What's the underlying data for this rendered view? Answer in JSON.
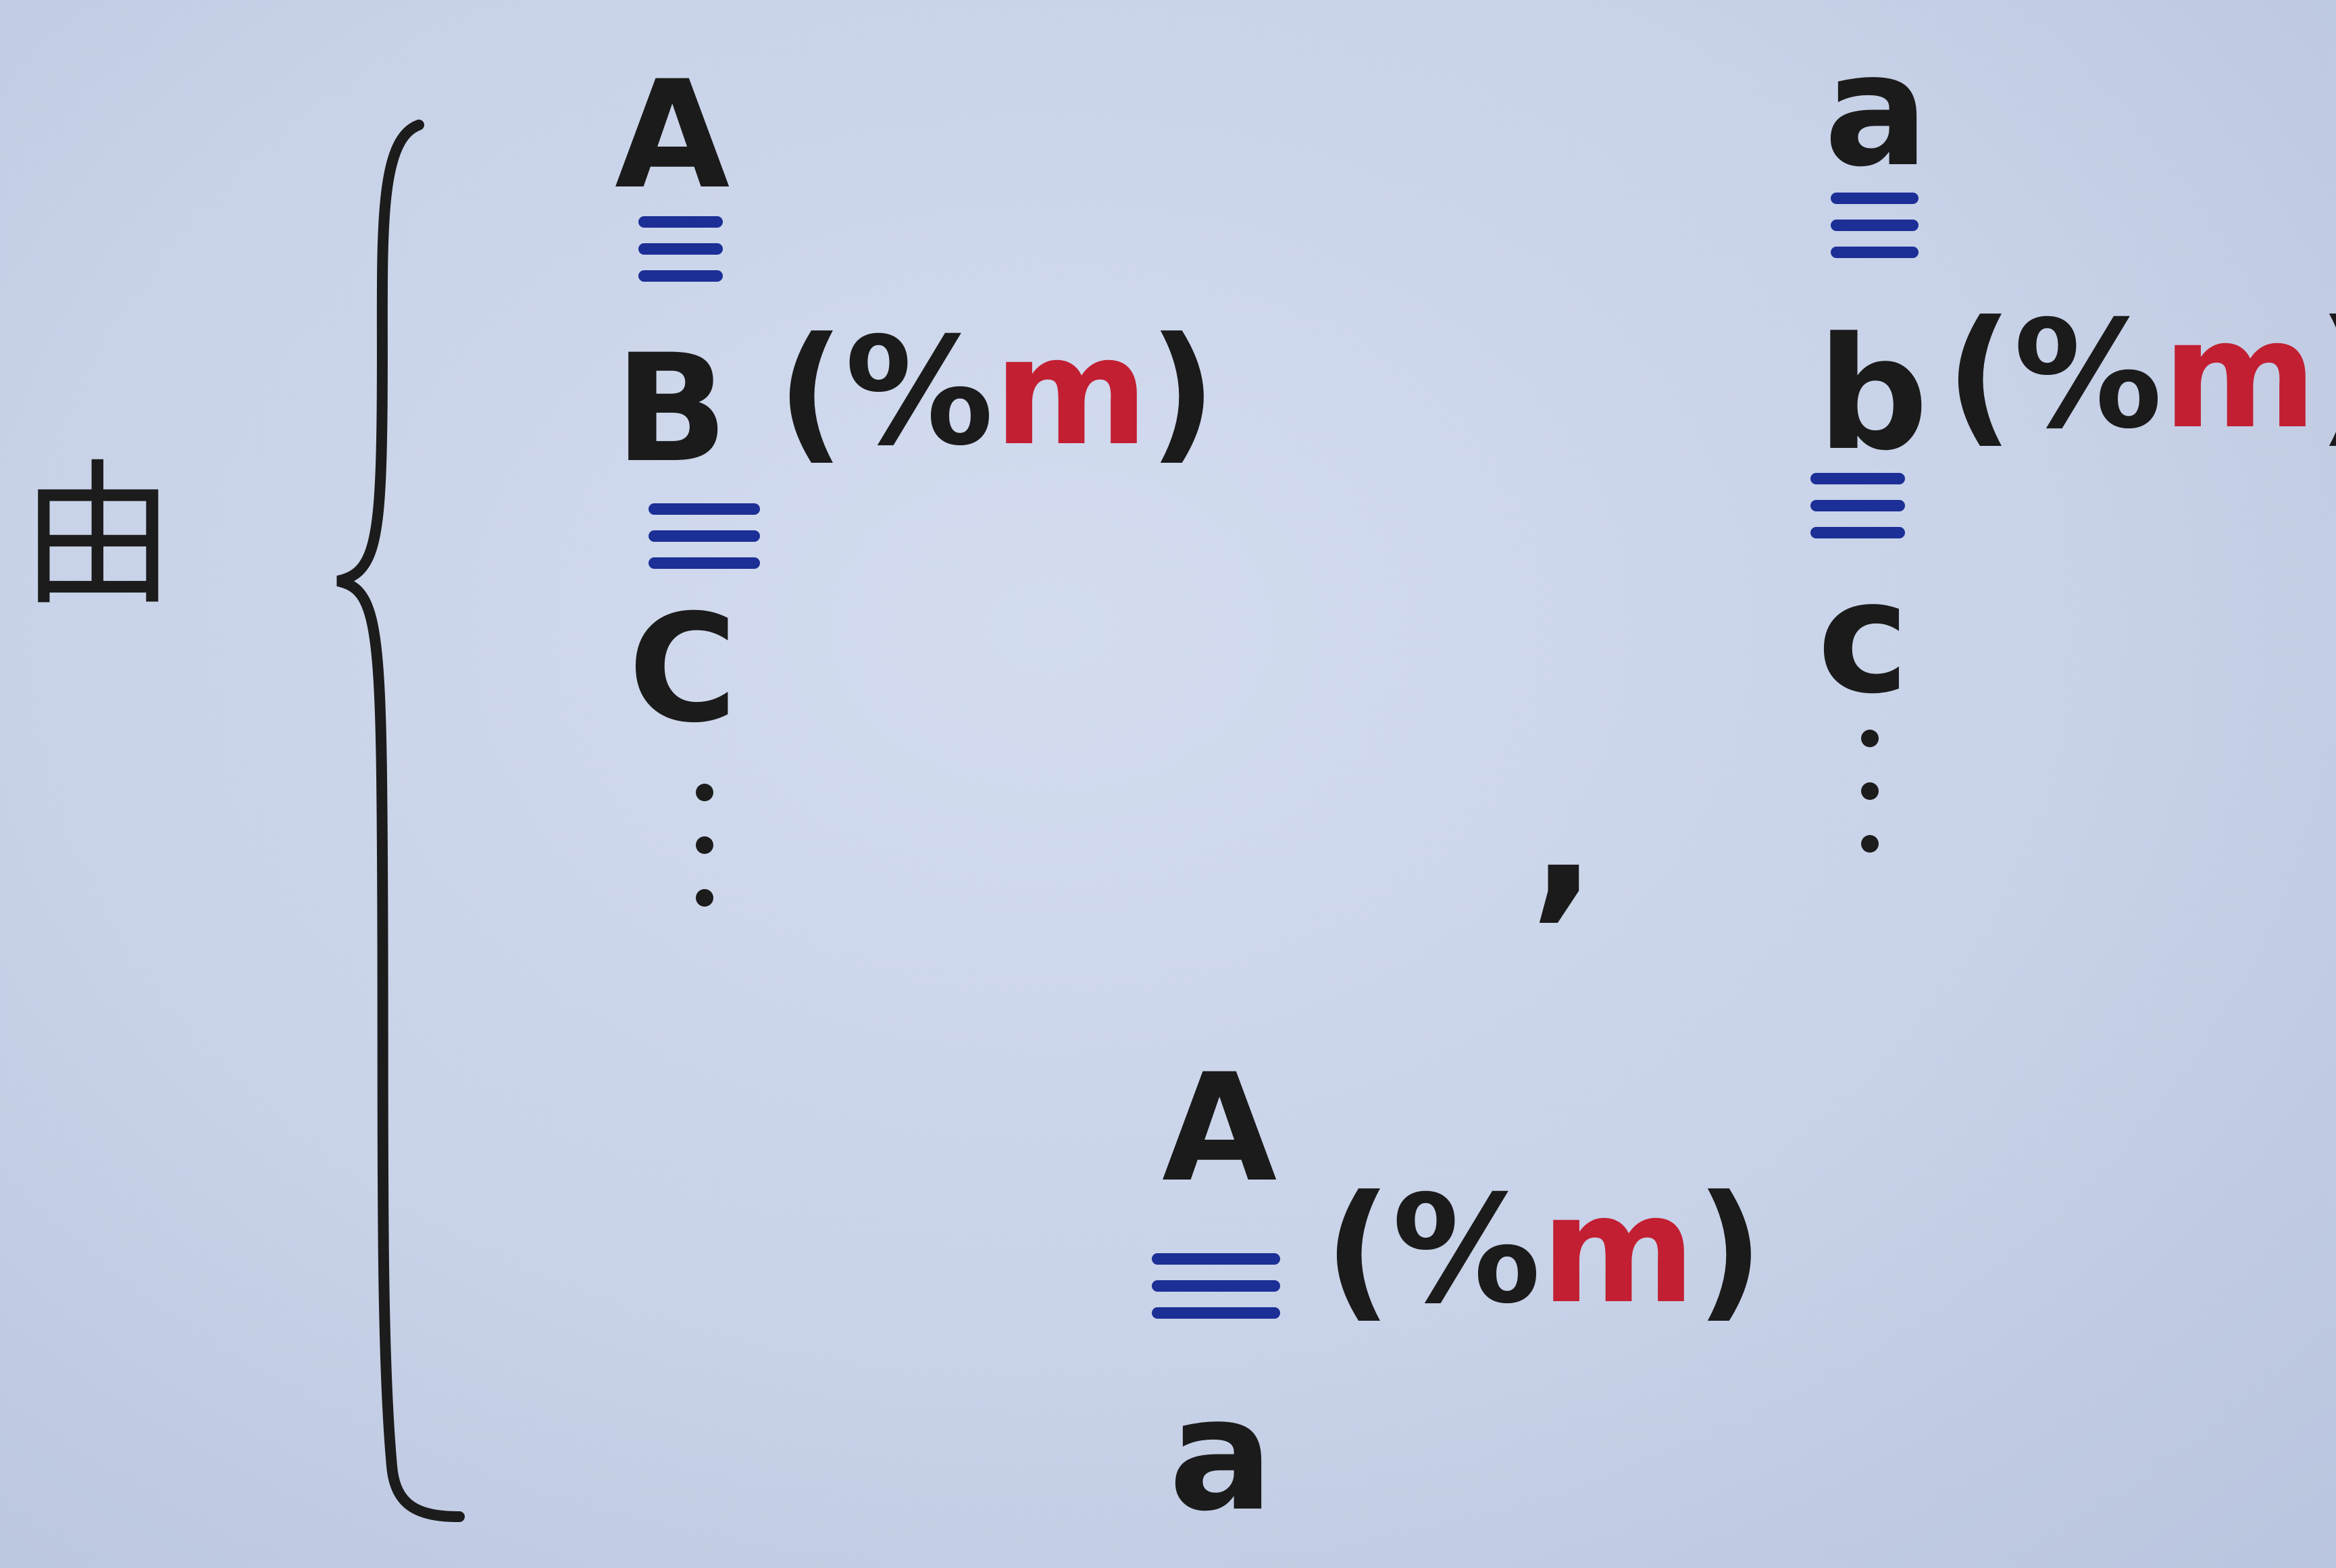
{
  "intro_char": "由",
  "group_left": {
    "items": [
      "A",
      "B",
      "C"
    ],
    "relation": "(%",
    "modulus": "m",
    "close": ")"
  },
  "group_right": {
    "items": [
      "a",
      "b",
      "c"
    ],
    "relation": "(%",
    "modulus": "m",
    "close": ")"
  },
  "separator": ",",
  "result": {
    "top": "A",
    "bottom": "a",
    "relation": "(%",
    "modulus": "m",
    "close": ")"
  },
  "colors": {
    "ink": "#1c1c1c",
    "equiv_blue": "#1c2f96",
    "modulus_red": "#c21f32",
    "paper": "#c8d2e8"
  }
}
